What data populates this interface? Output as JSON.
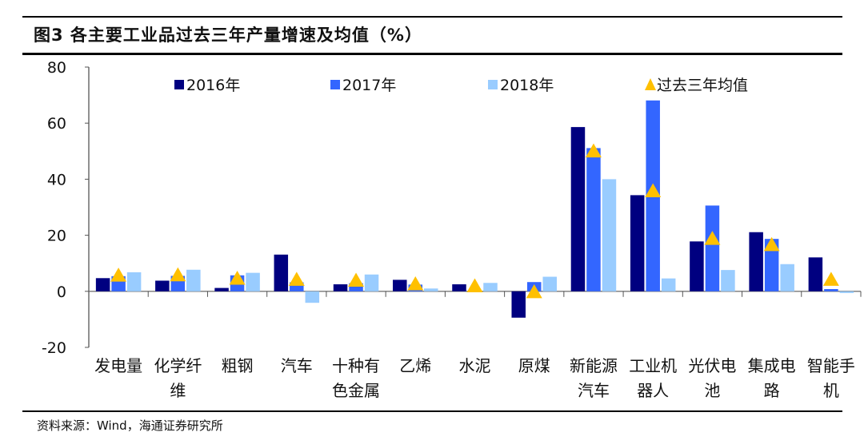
{
  "header": {
    "title": "图3  各主要工业品过去三年产量增速及均值（%）"
  },
  "footer": {
    "source": "资料来源：Wind，海通证券研究所"
  },
  "chart_data": {
    "type": "bar",
    "title": "各主要工业品过去三年产量增速及均值（%）",
    "xlabel": "",
    "ylabel": "",
    "ylim": [
      -20,
      80
    ],
    "yticks": [
      -20,
      0,
      20,
      40,
      60,
      80
    ],
    "grid": false,
    "legend_position": "top",
    "categories": [
      [
        "发电量"
      ],
      [
        "化学纤",
        "维"
      ],
      [
        "粗钢"
      ],
      [
        "汽车"
      ],
      [
        "十种有",
        "色金属"
      ],
      [
        "乙烯"
      ],
      [
        "水泥"
      ],
      [
        "原煤"
      ],
      [
        "新能源",
        "汽车"
      ],
      [
        "工业机",
        "器人"
      ],
      [
        "光伏电",
        "池"
      ],
      [
        "集成电",
        "路"
      ],
      [
        "智能手",
        "机"
      ]
    ],
    "series": [
      {
        "name": "2016年",
        "kind": "bar",
        "color": "#000080",
        "values": [
          4.7,
          3.8,
          1.2,
          13.1,
          2.5,
          4.1,
          2.5,
          -9.4,
          58.6,
          34.3,
          17.8,
          21.1,
          12.1
        ]
      },
      {
        "name": "2017年",
        "kind": "bar",
        "color": "#3366ff",
        "values": [
          5.4,
          5.5,
          5.7,
          3.2,
          2.9,
          2.4,
          -0.2,
          3.3,
          51.1,
          68.1,
          30.6,
          18.7,
          0.8
        ]
      },
      {
        "name": "2018年",
        "kind": "bar",
        "color": "#99ccff",
        "values": [
          6.8,
          7.7,
          6.6,
          -4.1,
          6.0,
          1.0,
          3.0,
          5.2,
          40.0,
          4.6,
          7.6,
          9.7,
          -0.6
        ]
      },
      {
        "name": "过去三年均值",
        "kind": "marker",
        "marker": "triangle",
        "color": "#ffc000",
        "values": [
          5.6,
          5.7,
          4.5,
          4.1,
          3.8,
          2.5,
          1.8,
          -0.3,
          49.9,
          35.7,
          18.7,
          16.5,
          4.1
        ]
      }
    ]
  }
}
